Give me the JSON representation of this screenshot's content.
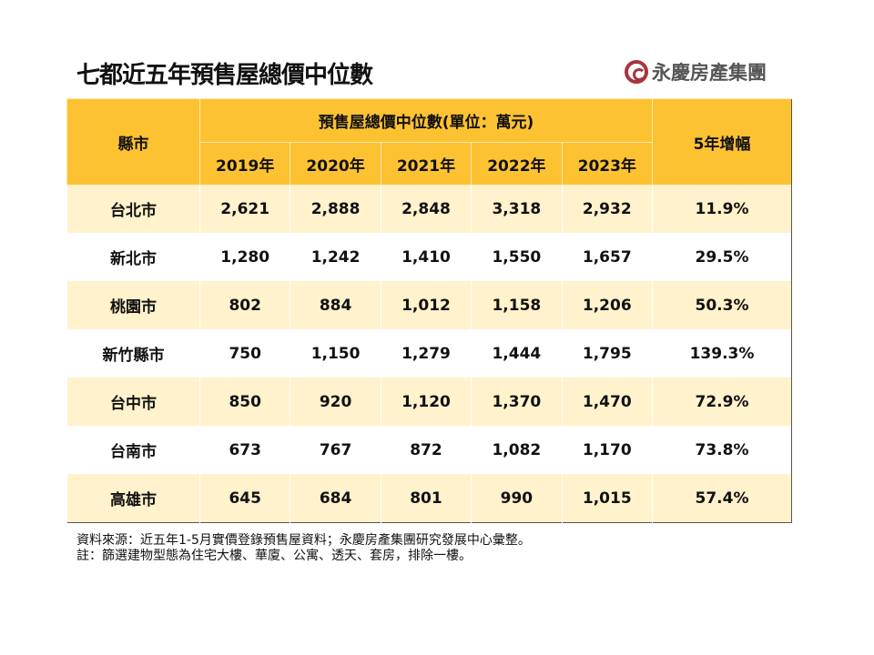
{
  "title": "七都近五年預售屋總價中位數",
  "logo": {
    "text": "永慶房產集團",
    "color": "#a8343e"
  },
  "table": {
    "col_county": "縣市",
    "group_header": "預售屋總價中位數(單位：萬元)",
    "years": [
      "2019年",
      "2020年",
      "2021年",
      "2022年",
      "2023年"
    ],
    "col_growth": "5年增幅",
    "rows": [
      {
        "county": "台北市",
        "values": [
          "2,621",
          "2,888",
          "2,848",
          "3,318",
          "2,932"
        ],
        "growth": "11.9%"
      },
      {
        "county": "新北市",
        "values": [
          "1,280",
          "1,242",
          "1,410",
          "1,550",
          "1,657"
        ],
        "growth": "29.5%"
      },
      {
        "county": "桃園市",
        "values": [
          "802",
          "884",
          "1,012",
          "1,158",
          "1,206"
        ],
        "growth": "50.3%"
      },
      {
        "county": "新竹縣市",
        "values": [
          "750",
          "1,150",
          "1,279",
          "1,444",
          "1,795"
        ],
        "growth": "139.3%"
      },
      {
        "county": "台中市",
        "values": [
          "850",
          "920",
          "1,120",
          "1,370",
          "1,470"
        ],
        "growth": "72.9%"
      },
      {
        "county": "台南市",
        "values": [
          "673",
          "767",
          "872",
          "1,082",
          "1,170"
        ],
        "growth": "73.8%"
      },
      {
        "county": "高雄市",
        "values": [
          "645",
          "684",
          "801",
          "990",
          "1,015"
        ],
        "growth": "57.4%"
      }
    ]
  },
  "notes": {
    "source": "資料來源：近五年1-5月實價登錄預售屋資料；永慶房產集團研究發展中心彙整。",
    "remark": "註：篩選建物型態為住宅大樓、華廈、公寓、透天、套房，排除一樓。"
  },
  "colors": {
    "header": "#FDC232",
    "row_alt": "#FFF2CC"
  }
}
